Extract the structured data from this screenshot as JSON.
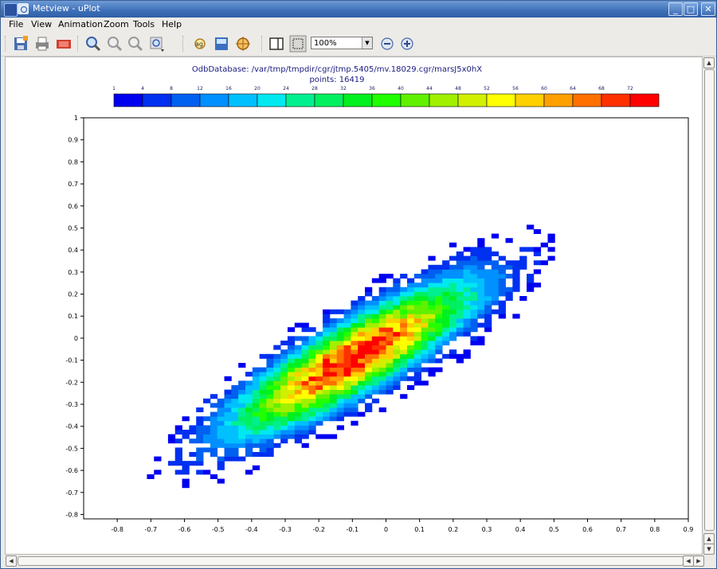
{
  "window": {
    "title": "Metview - uPlot"
  },
  "menu": [
    "File",
    "View",
    "Animation",
    "Zoom",
    "Tools",
    "Help"
  ],
  "toolbar": {
    "zoom_value": "100%"
  },
  "plot": {
    "header_line1": "OdbDatabase: /var/tmp/tmpdir/cgr/jtmp.5405/mv.18029.cgr/marsJ5x0hX",
    "header_line2": "points: 16419",
    "colorbar_labels": [
      "1",
      "4",
      "8",
      "12",
      "16",
      "20",
      "24",
      "28",
      "32",
      "36",
      "40",
      "44",
      "48",
      "52",
      "56",
      "60",
      "64",
      "68",
      "72"
    ],
    "colorbar_colors": [
      "#0000f0",
      "#0030f0",
      "#0060f0",
      "#0090ff",
      "#00c0ff",
      "#00e8f0",
      "#00f090",
      "#00f060",
      "#00f020",
      "#20ff00",
      "#60f000",
      "#a0f000",
      "#d0f000",
      "#ffff00",
      "#ffd000",
      "#ffa000",
      "#ff7000",
      "#ff3000",
      "#ff0000"
    ]
  },
  "chart_data": {
    "type": "heatmap",
    "xlim": [
      -0.9,
      0.9
    ],
    "ylim": [
      -0.82,
      1.0
    ],
    "xticks": [
      "-0.8",
      "-0.7",
      "-0.6",
      "-0.5",
      "-0.4",
      "-0.3",
      "-0.2",
      "-0.1",
      "0",
      "0.1",
      "0.2",
      "0.3",
      "0.4",
      "0.5",
      "0.6",
      "0.7",
      "0.8",
      "0.9"
    ],
    "yticks": [
      "-0.8",
      "-0.7",
      "-0.6",
      "-0.5",
      "-0.4",
      "-0.3",
      "-0.2",
      "-0.1",
      "0",
      "0.1",
      "0.2",
      "0.3",
      "0.4",
      "0.5",
      "0.6",
      "0.7",
      "0.8",
      "0.9",
      "1"
    ],
    "density_model": {
      "slope": 0.95,
      "intercept": -0.02,
      "spread": 0.12,
      "peak_count": 72,
      "peak_at": [
        -0.08,
        -0.08
      ]
    }
  }
}
